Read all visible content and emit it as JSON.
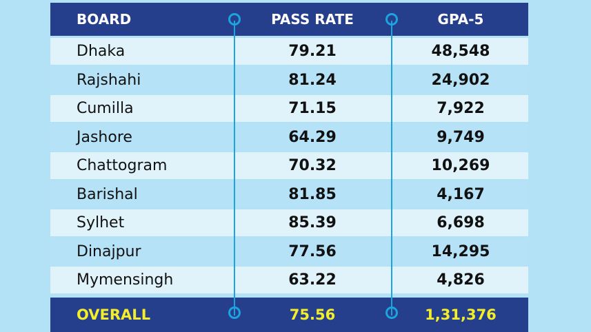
{
  "colors": {
    "background": "#b3e1f6",
    "header": "#263f8d",
    "row_light": "#e0f3fb",
    "row_dark": "#b6e2f7",
    "line": "#1ba4de",
    "overall_text": "#f4ee2a"
  },
  "chart_data": {
    "type": "table",
    "columns": [
      "BOARD",
      "PASS RATE",
      "GPA-5"
    ],
    "rows": [
      [
        "Dhaka",
        "79.21",
        "48,548"
      ],
      [
        "Rajshahi",
        "81.24",
        "24,902"
      ],
      [
        "Cumilla",
        "71.15",
        "7,922"
      ],
      [
        "Jashore",
        "64.29",
        "9,749"
      ],
      [
        "Chattogram",
        "70.32",
        "10,269"
      ],
      [
        "Barishal",
        "81.85",
        "4,167"
      ],
      [
        "Sylhet",
        "85.39",
        "6,698"
      ],
      [
        "Dinajpur",
        "77.56",
        "14,295"
      ],
      [
        "Mymensingh",
        "63.22",
        "4,826"
      ]
    ],
    "total": [
      "OVERALL",
      "75.56",
      "1,31,376"
    ]
  }
}
